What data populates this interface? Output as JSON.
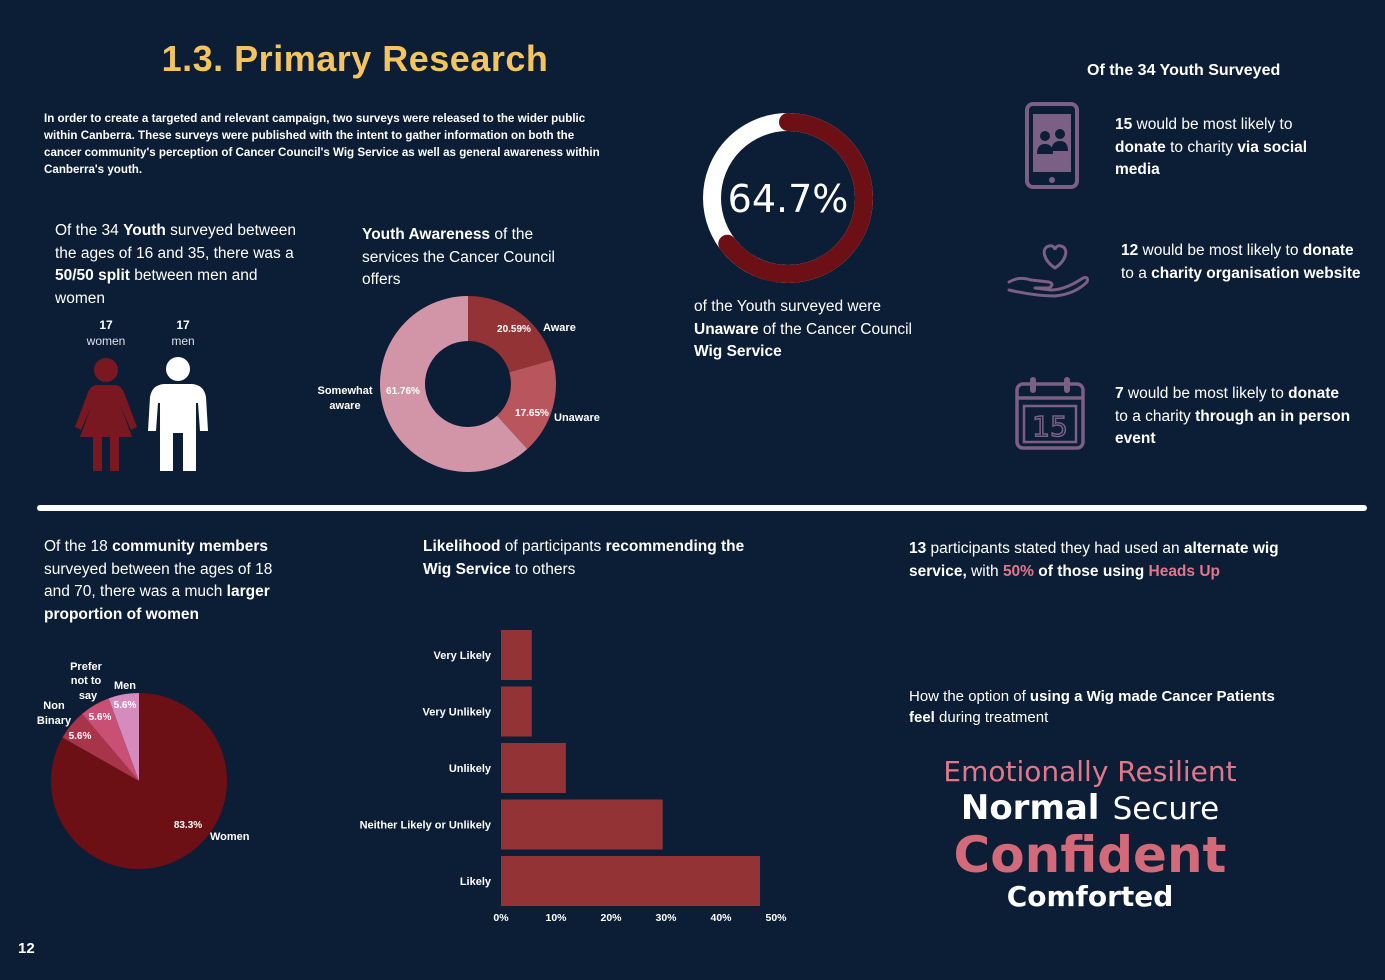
{
  "page": {
    "title": "1.3. Primary Research",
    "page_number": "12",
    "intro": "In order to create a targeted and relevant campaign, two surveys were released to the wider public within Canberra. These surveys were published with the intent to gather information on both the cancer community's perception of Cancer Council's Wig Service as well as general awareness within Canberra's youth."
  },
  "youth_gender": {
    "p1": "Of the 34 ",
    "p1_bold": "Youth",
    "p2": " surveyed between the ages of 16 and 35, there was a ",
    "p2_bold": "50/50 split",
    "p3": " between men and women",
    "women_count": "17",
    "women_label": "women",
    "men_count": "17",
    "men_label": "men",
    "women_color": "#7a1822",
    "men_color": "#ffffff"
  },
  "awareness": {
    "heading_bold": "Youth Awareness",
    "heading_rest": " of the services the Cancer Council offers",
    "labels": {
      "aware": "Aware",
      "unaware": "Unaware",
      "somewhat": "Somewhat aware"
    }
  },
  "unaware_stat": {
    "percent_text": "64.7%",
    "percent_value": 64.7,
    "p1": "of the Youth surveyed were ",
    "p1_bold": "Unaware",
    "p2": " of the Cancer Council ",
    "p2_bold": "Wig Service",
    "ring_color": "#6d1016",
    "ring_bg": "#ffffff"
  },
  "donation": {
    "heading": "Of the 34 Youth Surveyed",
    "items": [
      {
        "icon": "phone-social-icon",
        "count": "15",
        "t1": " would be most likely to ",
        "b1": "donate",
        "t2": " to charity ",
        "b2": "via social media"
      },
      {
        "icon": "heart-hand-icon",
        "count": "12",
        "t1": " would be most likely to ",
        "b1": "donate",
        "t2": " to a ",
        "b2": "charity organisation website"
      },
      {
        "icon": "calendar-event-icon",
        "count": "7",
        "t1": " would be most likely to ",
        "b1": "donate",
        "t2": " to a charity ",
        "b2": "through an in person event"
      }
    ],
    "calendar_day": "15",
    "icon_color": "#7c5f84"
  },
  "community": {
    "p1": "Of the 18 ",
    "p1_bold": "community members",
    "p2": " surveyed between the ages of 18 and 70, there was a much ",
    "p2_bold": "larger proportion of women"
  },
  "recommend": {
    "h_bold1": "Likelihood",
    "h_rest1": " of participants ",
    "h_bold2": "recommending the Wig Service",
    "h_rest2": " to others"
  },
  "alternate": {
    "count": "13",
    "t1": " participants stated they had used an ",
    "b1": "alternate wig service,",
    "t2": " with ",
    "pct": "50%",
    "b2": " of those using ",
    "brand": "Heads Up"
  },
  "feelings": {
    "h_rest1": "How the option of ",
    "h_bold": "using a Wig made Cancer Patients feel",
    "h_rest2": " during treatment",
    "w1": "Emotionally Resilient",
    "w2": "Normal",
    "w3": "Secure",
    "w4": "Confident",
    "w5": "Comforted"
  },
  "chart_data": [
    {
      "type": "pie",
      "subtype": "donut",
      "title": "Youth Awareness of the services the Cancer Council offers",
      "categories": [
        "Aware",
        "Unaware",
        "Somewhat aware"
      ],
      "values": [
        20.59,
        17.65,
        61.76
      ],
      "value_labels": [
        "20.59%",
        "17.65%",
        "61.76%"
      ],
      "colors": [
        "#933335",
        "#b9555c",
        "#d295a8"
      ]
    },
    {
      "type": "pie",
      "title": "",
      "categories": [
        "Women",
        "Non Binary",
        "Prefer not to say",
        "Men"
      ],
      "values": [
        83.3,
        5.6,
        5.6,
        5.6
      ],
      "value_labels": [
        "83.3%",
        "5.6%",
        "5.6%",
        "5.6%"
      ],
      "colors": [
        "#6d1016",
        "#a8344a",
        "#c94f74",
        "#d68bbd"
      ]
    },
    {
      "type": "bar",
      "orientation": "horizontal",
      "title": "Likelihood of participants recommending the Wig Service to others",
      "categories": [
        "Very Likely",
        "Very Unlikely",
        "Unlikely",
        "Neither Likely or Unlikely",
        "Likely"
      ],
      "values": [
        5.6,
        5.6,
        11.8,
        29.4,
        47.1
      ],
      "xlim": [
        0,
        50
      ],
      "xticks": [
        "0%",
        "10%",
        "20%",
        "30%",
        "40%",
        "50%"
      ],
      "color": "#933335",
      "grid": false
    }
  ]
}
